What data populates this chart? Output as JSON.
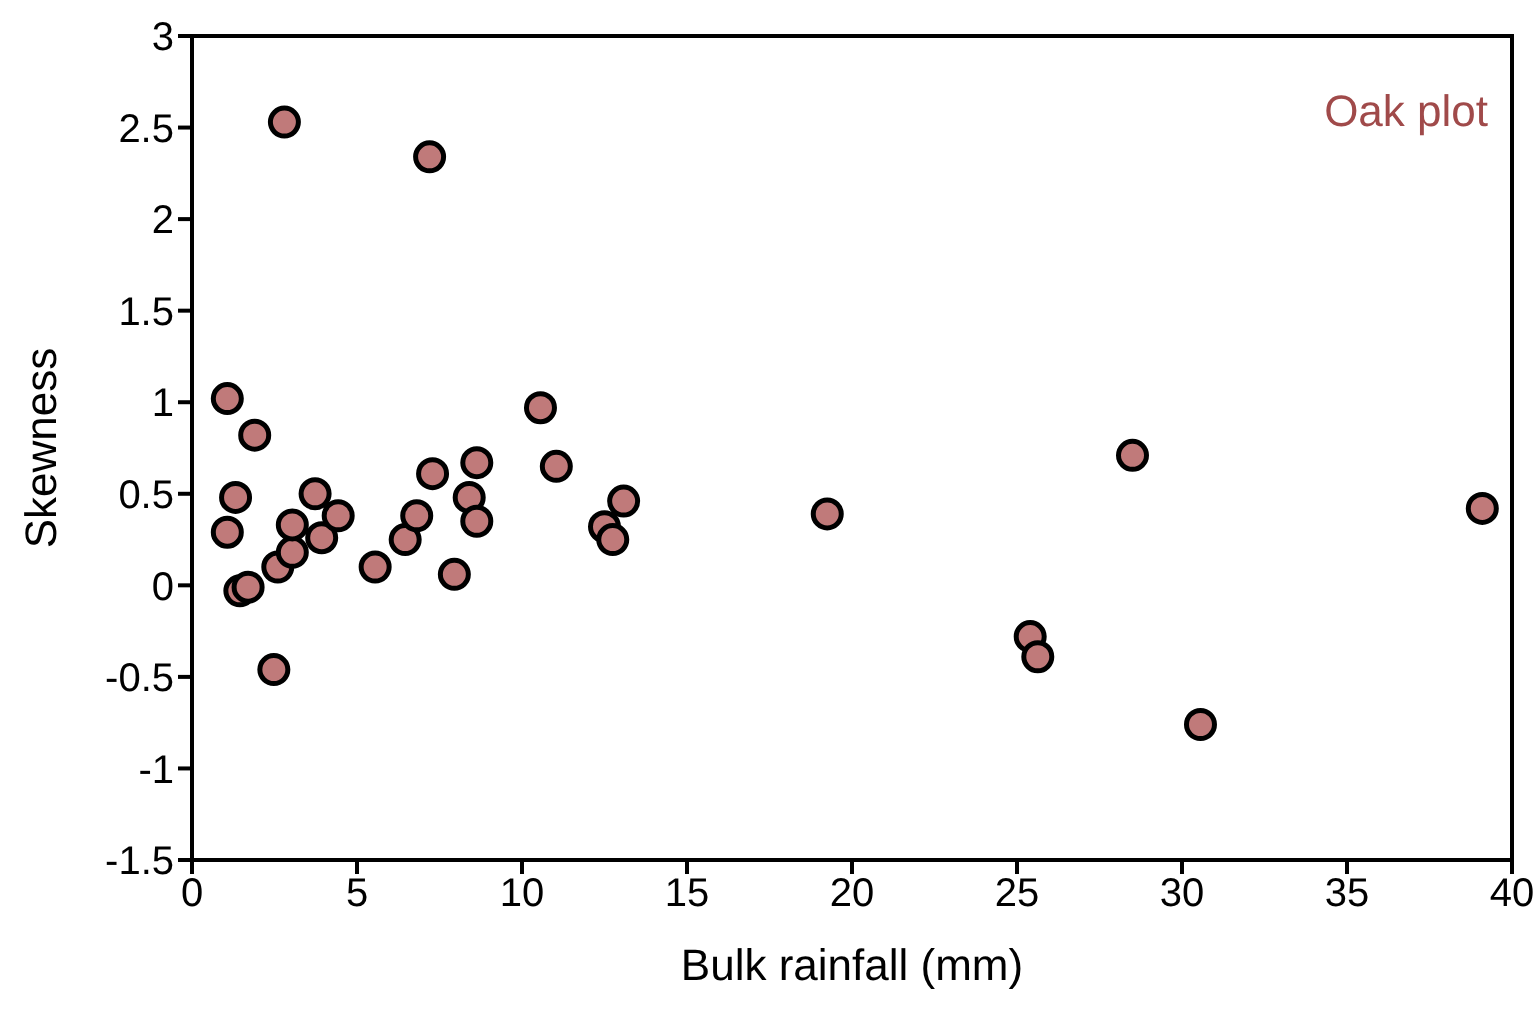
{
  "chart_data": {
    "type": "scatter",
    "xlabel": "Bulk rainfall (mm)",
    "ylabel": "Skewness",
    "annotations": [
      "Oak plot"
    ],
    "marker": "circle",
    "grid": false,
    "legend": false,
    "xlim": [
      0,
      40
    ],
    "xticks": [
      0,
      5,
      10,
      15,
      20,
      25,
      30,
      35,
      40
    ],
    "ylim": [
      -1.5,
      3
    ],
    "yticks": [
      -1.5,
      -1,
      -0.5,
      0,
      0.5,
      1,
      1.5,
      2,
      2.5,
      3
    ],
    "series": [
      {
        "color": "#c07a7a",
        "x": [
          2.8,
          7.2,
          1.07,
          1.9,
          1.32,
          1.07,
          1.45,
          1.7,
          2.48,
          2.6,
          3.04,
          3.04,
          3.73,
          3.93,
          4.43,
          5.55,
          6.46,
          6.81,
          7.29,
          7.95,
          8.4,
          8.63,
          8.63,
          10.56,
          11.04,
          12.5,
          12.75,
          13.08,
          19.25,
          25.4,
          25.63,
          28.5,
          30.56,
          39.1
        ],
        "values": [
          2.53,
          2.34,
          1.02,
          0.82,
          0.48,
          0.29,
          -0.03,
          -0.01,
          -0.46,
          0.1,
          0.18,
          0.33,
          0.5,
          0.26,
          0.38,
          0.1,
          0.25,
          0.38,
          0.61,
          0.06,
          0.48,
          0.67,
          0.35,
          0.97,
          0.65,
          0.32,
          0.25,
          0.46,
          0.39,
          -0.28,
          -0.39,
          0.71,
          -0.76,
          0.42
        ]
      }
    ]
  }
}
